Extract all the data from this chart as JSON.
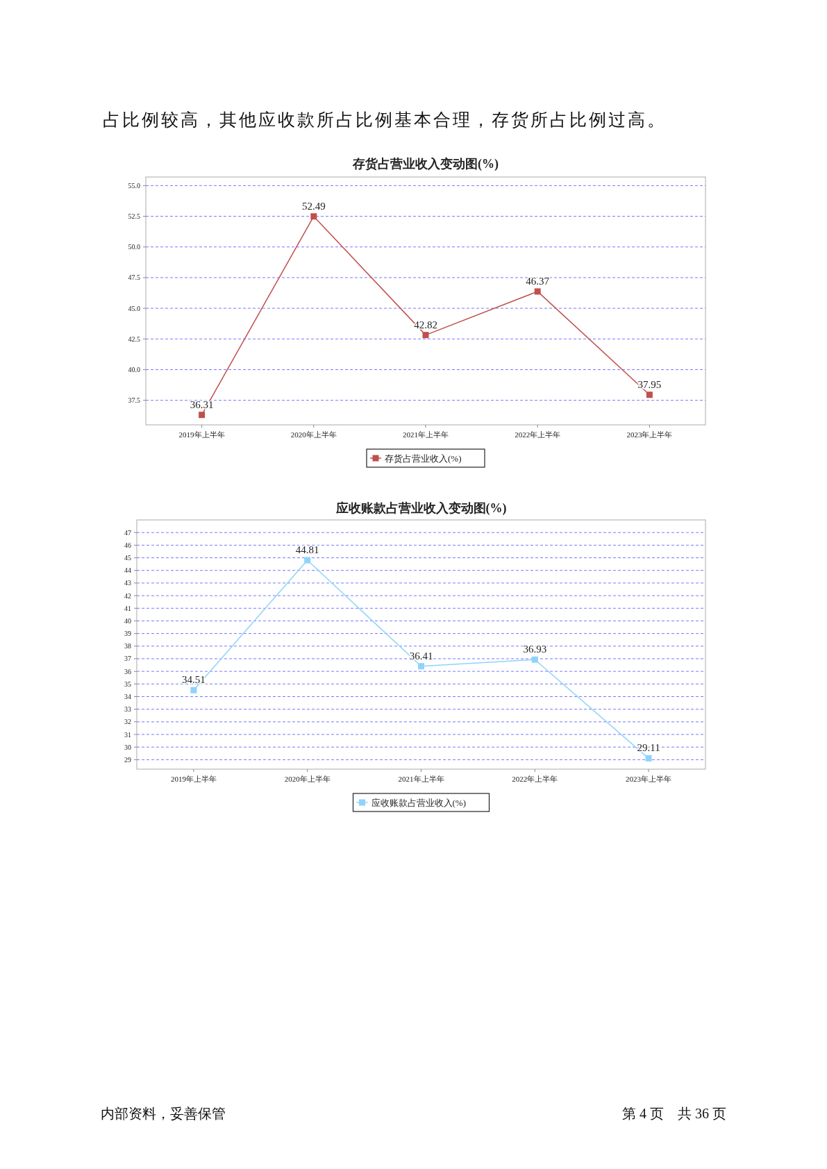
{
  "chart_data": [
    {
      "type": "line",
      "title": "存货占营业收入变动图(%)",
      "categories": [
        "2019年上半年",
        "2020年上半年",
        "2021年上半年",
        "2022年上半年",
        "2023年上半年"
      ],
      "series": [
        {
          "name": "存货占营业收入(%)",
          "color": "#c0504d",
          "values": [
            36.31,
            52.49,
            42.82,
            46.37,
            37.95
          ]
        }
      ],
      "ylim": [
        35.5,
        55.7
      ],
      "yticks": [
        {
          "value": 37.5,
          "label": "37.5"
        },
        {
          "value": 40,
          "label": "40.0"
        },
        {
          "value": 42.5,
          "label": "42.5"
        },
        {
          "value": 45,
          "label": "45.0"
        },
        {
          "value": 47.5,
          "label": "47.5"
        },
        {
          "value": 50,
          "label": "50.0"
        },
        {
          "value": 52.5,
          "label": "52.5"
        },
        {
          "value": 55,
          "label": "55.0"
        }
      ],
      "grid": "y",
      "legend": "bottom",
      "marker": "square",
      "data_labels": true,
      "annotations": [
        "占比例较高，其他应收款所占比例基本合理，存货所占比例过高。"
      ]
    },
    {
      "type": "line",
      "title": "应收账款占营业收入变动图(%)",
      "categories": [
        "2019年上半年",
        "2020年上半年",
        "2021年上半年",
        "2022年上半年",
        "2023年上半年"
      ],
      "series": [
        {
          "name": "应收账款占营业收入(%)",
          "color": "#8fd3fa",
          "values": [
            34.51,
            44.81,
            36.41,
            36.93,
            29.11
          ]
        }
      ],
      "ylim": [
        28.25,
        48
      ],
      "yticks": [
        29,
        30,
        31,
        32,
        33,
        34,
        35,
        36,
        37,
        38,
        39,
        40,
        41,
        42,
        43,
        44,
        45,
        46,
        47
      ],
      "grid": "y",
      "legend": "bottom",
      "marker": "square",
      "data_labels": true,
      "annotations": [
        "内部资料，妥善保管",
        "第 4 页　共 36 页"
      ]
    }
  ]
}
